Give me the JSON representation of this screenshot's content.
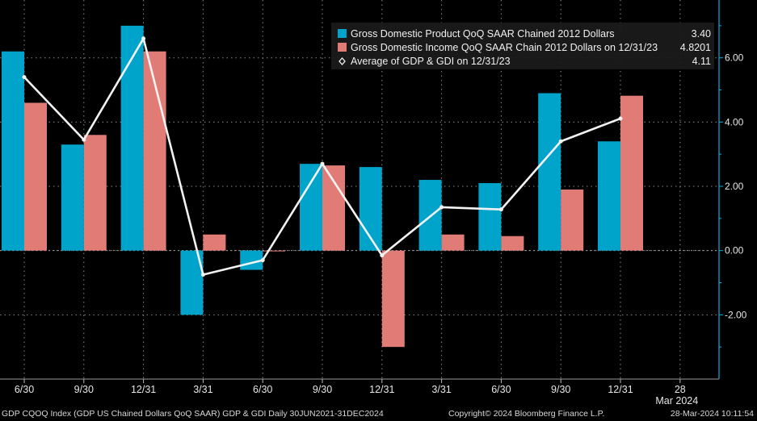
{
  "chart_data": {
    "type": "bar",
    "categories": [
      "6/30",
      "9/30",
      "12/31",
      "3/31",
      "6/30",
      "9/30",
      "12/31",
      "3/31",
      "6/30",
      "9/30",
      "12/31"
    ],
    "series": [
      {
        "name": "Gross Domestic Product QoQ SAAR Chained 2012 Dollars",
        "latest": "3.40",
        "color": "#00a3c9",
        "values": [
          6.2,
          3.3,
          7.0,
          -2.0,
          -0.6,
          2.7,
          2.6,
          2.2,
          2.1,
          4.9,
          3.4
        ]
      },
      {
        "name": "Gross Domestic Income QoQ SAAR Chain 2012 Dollars on 12/31/23",
        "latest": "4.8201",
        "color": "#e07b76",
        "values": [
          4.6,
          3.6,
          6.2,
          0.5,
          0.0,
          2.65,
          -3.0,
          0.5,
          0.45,
          1.9,
          4.82
        ]
      },
      {
        "name": "Average of GDP & GDI on 12/31/23",
        "latest": "4.11",
        "color": "#f2f2f2",
        "type": "line",
        "values": [
          5.4,
          3.45,
          6.6,
          -0.75,
          -0.3,
          2.7,
          -0.15,
          1.35,
          1.28,
          3.4,
          4.11
        ]
      }
    ],
    "extra_x_tick": "28",
    "extra_x_subtitle": "Mar 2024",
    "yticks": [
      -2,
      0,
      2,
      4,
      6
    ],
    "ytick_labels": [
      "-2.00",
      "0.00",
      "2.00",
      "4.00",
      "6.00"
    ],
    "ylim": [
      -4.0,
      7.8
    ],
    "grid": true,
    "legend_position": "top-right",
    "y_axis_side": "right"
  },
  "footer": {
    "left": "GDP CQOQ Index (GDP US Chained Dollars QoQ SAAR) GDP & GDI  Daily 30JUN2021-31DEC2024",
    "middle": "Copyright© 2024 Bloomberg Finance L.P.",
    "right": "28-Mar-2024 10:11:54"
  }
}
